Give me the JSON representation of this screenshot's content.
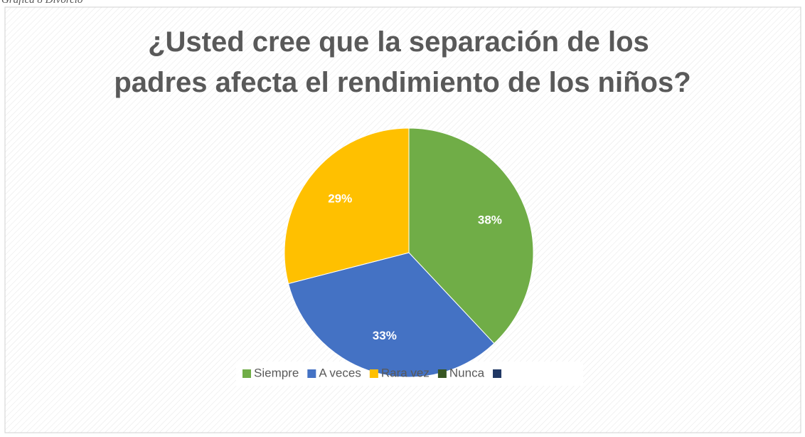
{
  "caption": "Gráfica 8 Divorcio",
  "chart_data": {
    "type": "pie",
    "title": "¿Usted cree que la separación de los padres afecta el rendimiento de los niños?",
    "categories": [
      "Siempre",
      "A veces",
      "Rara vez",
      "Nunca",
      null
    ],
    "values": [
      38,
      33,
      29,
      0,
      0
    ],
    "value_labels": [
      "38%",
      "33%",
      "29%",
      null,
      null
    ],
    "colors": [
      "#70ad47",
      "#4472c4",
      "#ffc000",
      "#375623",
      "#203864"
    ],
    "legend": "bottom"
  }
}
